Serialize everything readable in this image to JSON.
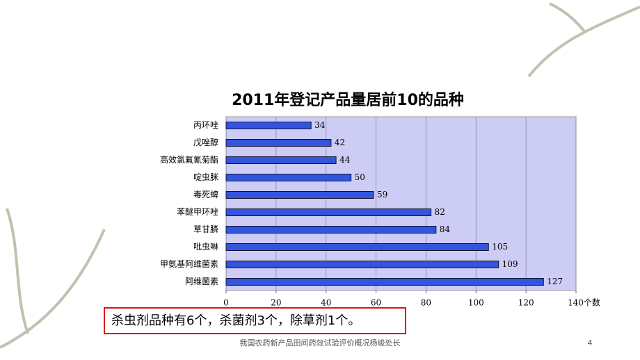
{
  "chart_data": {
    "type": "hbar",
    "title": "2011年登记产品量居前10的品种",
    "categories": [
      "丙环唑",
      "戊唑醇",
      "高效氯氟氰菊酯",
      "啶虫脒",
      "毒死蜱",
      "苯醚甲环唑",
      "草甘膦",
      "吡虫啉",
      "甲氨基阿维菌素",
      "阿维菌素"
    ],
    "values": [
      34,
      42,
      44,
      50,
      59,
      82,
      84,
      105,
      109,
      127
    ],
    "color": "#3355dd",
    "xlim": [
      0,
      140
    ],
    "xticks": [
      0,
      20,
      40,
      60,
      80,
      100,
      120,
      {
        "value": 140,
        "label": "140个数"
      }
    ],
    "grid": true,
    "note": "杀虫剂品种有6个，杀菌剂3个，除草剂1个。",
    "footer": "我国农药新产品田间药效试验评价概况杨峻处长",
    "page_number": "4"
  }
}
